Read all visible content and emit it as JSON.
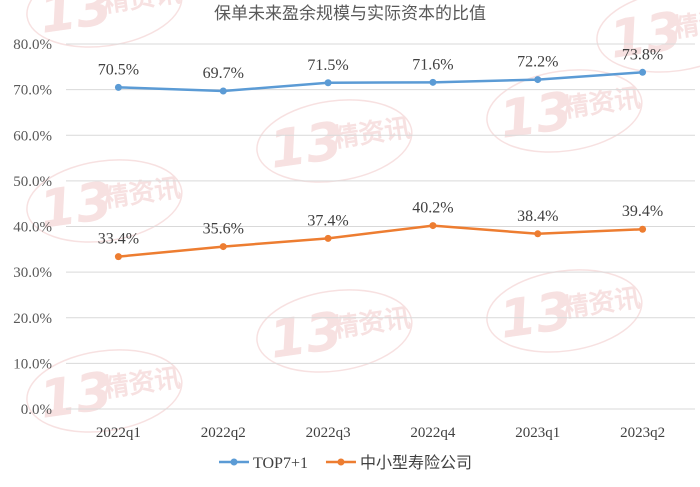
{
  "watermark": {
    "number": "13",
    "text": "精资讯",
    "color": "#f2c9c9"
  },
  "chart_data": {
    "type": "line",
    "title": "保单未来盈余规模与实际资本的比值",
    "xlabel": "",
    "ylabel": "",
    "categories": [
      "2022q1",
      "2022q2",
      "2022q3",
      "2022q4",
      "2023q1",
      "2023q2"
    ],
    "ylim": [
      0,
      80
    ],
    "yticks": [
      "0.0%",
      "10.0%",
      "20.0%",
      "30.0%",
      "40.0%",
      "50.0%",
      "60.0%",
      "70.0%",
      "80.0%"
    ],
    "grid": true,
    "legend_position": "bottom",
    "series": [
      {
        "name": "TOP7+1",
        "color": "#5b9bd5",
        "values": [
          70.5,
          69.7,
          71.5,
          71.6,
          72.2,
          73.8
        ],
        "labels": [
          "70.5%",
          "69.7%",
          "71.5%",
          "71.6%",
          "72.2%",
          "73.8%"
        ]
      },
      {
        "name": "中小型寿险公司",
        "color": "#ed7d31",
        "values": [
          33.4,
          35.6,
          37.4,
          40.2,
          38.4,
          39.4
        ],
        "labels": [
          "33.4%",
          "35.6%",
          "37.4%",
          "40.2%",
          "38.4%",
          "39.4%"
        ]
      }
    ]
  }
}
